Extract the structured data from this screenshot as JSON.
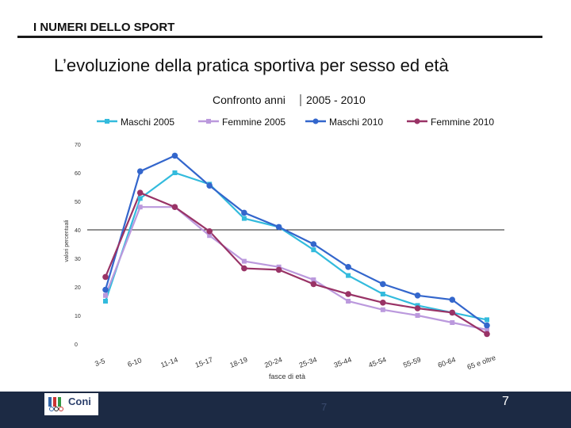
{
  "header": {
    "section_title": "I NUMERI DELLO SPORT"
  },
  "slide": {
    "title": "L’evoluzione della pratica sportiva per sesso ed età"
  },
  "footer": {
    "logo_text": "Coni",
    "page_small": "7",
    "page_big": "7"
  },
  "colors": {
    "maschi_2005": "#33bbdd",
    "femmine_2005": "#bb99dd",
    "maschi_2010": "#3366cc",
    "femmine_2010": "#993366",
    "footer_bg": "#1c2a44"
  },
  "chart_data": {
    "type": "line",
    "title_left": "Confronto anni",
    "title_right": "2005 - 2010",
    "xlabel": "fasce di età",
    "ylabel": "valori percentuali",
    "ylim": [
      0,
      70
    ],
    "yticks": [
      "0",
      "10",
      "20",
      "30",
      "40",
      "50",
      "60",
      "70"
    ],
    "categories": [
      "3-5",
      "6-10",
      "11-14",
      "15-17",
      "18-19",
      "20-24",
      "25-34",
      "35-44",
      "45-54",
      "55-59",
      "60-64",
      "65 e oltre"
    ],
    "reference_line": 40,
    "series": [
      {
        "name": "Maschi 2005",
        "values": [
          15,
          51,
          60,
          56,
          44,
          41,
          33,
          24,
          17.5,
          13.5,
          11,
          8.5
        ]
      },
      {
        "name": "Femmine 2005",
        "values": [
          17,
          48,
          48,
          38,
          29,
          27,
          22.5,
          15,
          12,
          10,
          7.5,
          5
        ]
      },
      {
        "name": "Maschi 2010",
        "values": [
          19,
          60.5,
          66,
          55.5,
          46,
          41,
          35,
          27,
          21,
          17,
          15.5,
          6.5
        ]
      },
      {
        "name": "Femmine 2010",
        "values": [
          23.5,
          53,
          48,
          39.5,
          26.5,
          26,
          21,
          17.5,
          14.5,
          12.5,
          11,
          3.5
        ]
      }
    ]
  }
}
